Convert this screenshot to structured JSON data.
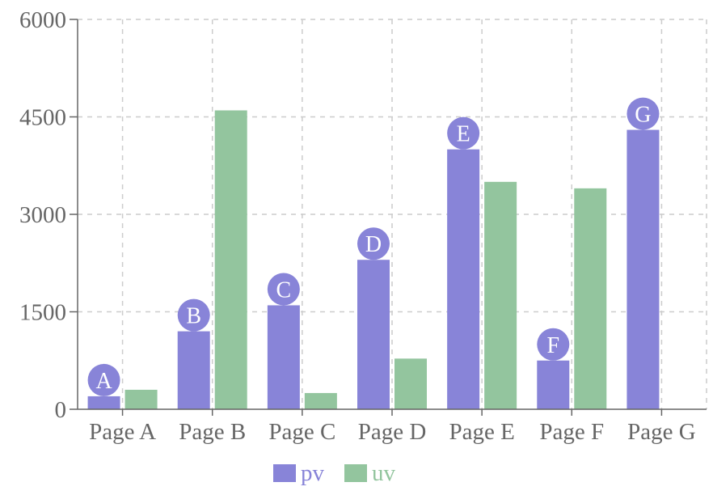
{
  "chart_data": {
    "type": "bar",
    "categories": [
      "Page A",
      "Page B",
      "Page C",
      "Page D",
      "Page E",
      "Page F",
      "Page G"
    ],
    "series": [
      {
        "name": "pv",
        "color": "#8884d8",
        "values": [
          200,
          1200,
          1600,
          2300,
          4000,
          750,
          4300
        ],
        "point_labels": [
          "A",
          "B",
          "C",
          "D",
          "E",
          "F",
          "G"
        ]
      },
      {
        "name": "uv",
        "color": "#93c59e",
        "values": [
          300,
          4600,
          250,
          780,
          3500,
          3400,
          0
        ]
      }
    ],
    "y_ticks": [
      "0",
      "1500",
      "3000",
      "4500",
      "6000"
    ],
    "ylim": [
      0,
      6000
    ],
    "grid": true,
    "legend": "bottom"
  }
}
